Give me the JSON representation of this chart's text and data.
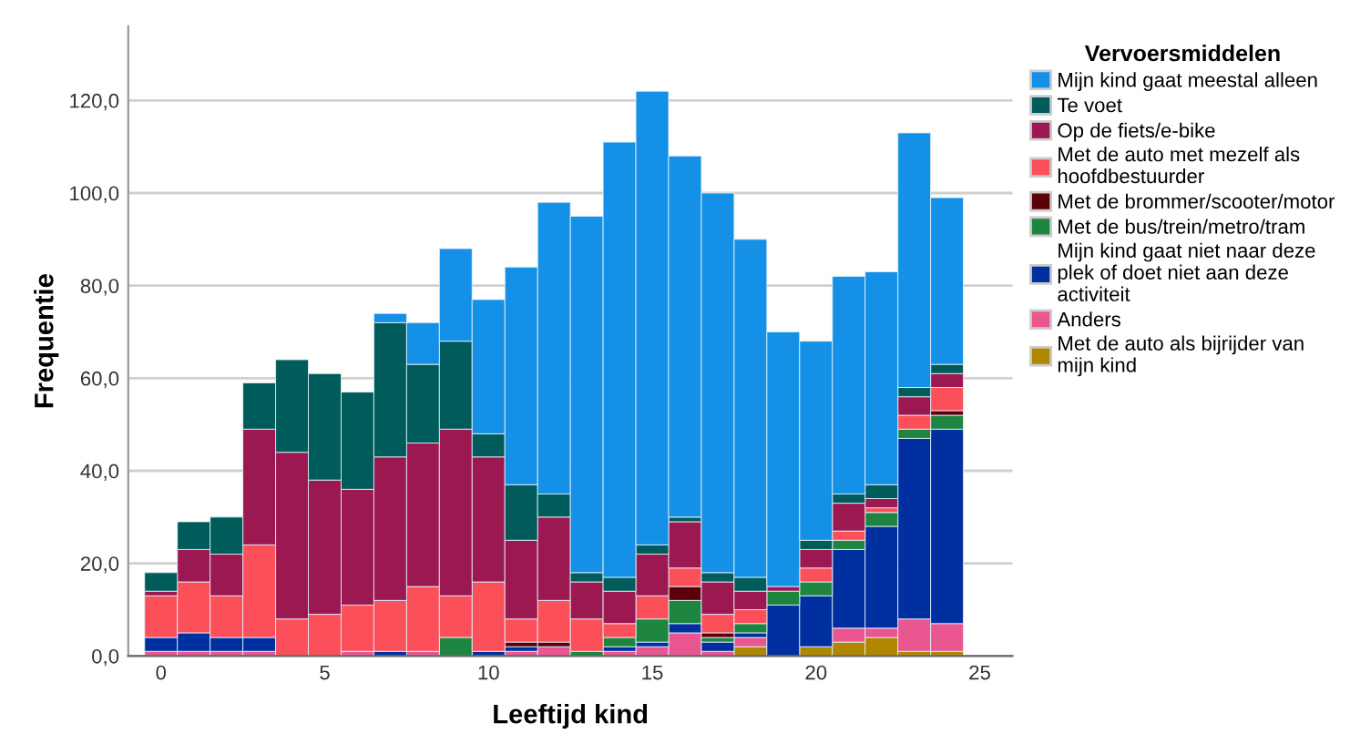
{
  "chart_data": {
    "type": "bar",
    "stacked": true,
    "xlabel": "Leeftijd kind",
    "ylabel": "Frequentie",
    "legend_title": "Vervoersmiddelen",
    "legend": "right",
    "grid": "y",
    "x": [
      0,
      1,
      2,
      3,
      4,
      5,
      6,
      7,
      8,
      9,
      10,
      11,
      12,
      13,
      14,
      15,
      16,
      17,
      18,
      19,
      20,
      21,
      22,
      23,
      24
    ],
    "xlim": [
      -1,
      26
    ],
    "xticks": [
      0,
      5,
      10,
      15,
      20,
      25
    ],
    "ylim": [
      0,
      136
    ],
    "yticks": [
      {
        "value": 0,
        "label": "0,0"
      },
      {
        "value": 20,
        "label": "20,0"
      },
      {
        "value": 40,
        "label": "40,0"
      },
      {
        "value": 60,
        "label": "60,0"
      },
      {
        "value": 80,
        "label": "80,0"
      },
      {
        "value": 100,
        "label": "100,0"
      },
      {
        "value": 120,
        "label": "120,0"
      }
    ],
    "series": [
      {
        "name": "Met de auto als bijrijder van mijn kind",
        "color": "#b08700",
        "values": [
          0,
          0,
          0,
          0,
          0,
          0,
          0,
          0,
          0,
          0,
          0,
          0,
          0,
          0,
          0,
          0,
          0,
          0,
          2,
          0,
          2,
          3,
          4,
          1,
          1
        ]
      },
      {
        "name": "Anders",
        "color": "#ea5690",
        "values": [
          1,
          1,
          1,
          1,
          0,
          0,
          1,
          0,
          1,
          0,
          0,
          1,
          2,
          0,
          1,
          2,
          5,
          1,
          2,
          0,
          0,
          3,
          2,
          7,
          6
        ]
      },
      {
        "name": "Mijn kind gaat niet naar deze plek of doet niet aan deze activiteit",
        "color": "#002fa0",
        "values": [
          3,
          4,
          3,
          3,
          0,
          0,
          0,
          1,
          0,
          0,
          1,
          1,
          0,
          0,
          1,
          1,
          2,
          2,
          1,
          11,
          11,
          17,
          22,
          39,
          42
        ]
      },
      {
        "name": "Met de bus/trein/metro/tram",
        "color": "#1e8540",
        "values": [
          0,
          0,
          0,
          0,
          0,
          0,
          0,
          0,
          0,
          4,
          0,
          0,
          0,
          1,
          2,
          5,
          5,
          1,
          2,
          3,
          3,
          2,
          3,
          2,
          3
        ]
      },
      {
        "name": "Met de brommer/scooter/motor",
        "color": "#5a0008",
        "values": [
          0,
          0,
          0,
          0,
          0,
          0,
          0,
          0,
          0,
          0,
          0,
          1,
          1,
          0,
          0,
          0,
          3,
          1,
          0,
          0,
          0,
          0,
          0,
          0,
          1
        ]
      },
      {
        "name": "Met de auto met mezelf als hoofdbestuurder",
        "color": "#fb4f5a",
        "values": [
          9,
          11,
          9,
          20,
          8,
          9,
          10,
          11,
          14,
          9,
          15,
          5,
          9,
          7,
          3,
          5,
          4,
          4,
          3,
          0,
          3,
          2,
          1,
          3,
          5
        ]
      },
      {
        "name": "Op de fiets/e-bike",
        "color": "#9b1851",
        "values": [
          1,
          7,
          9,
          25,
          36,
          29,
          25,
          31,
          31,
          36,
          27,
          17,
          18,
          8,
          7,
          9,
          10,
          7,
          4,
          1,
          4,
          6,
          2,
          4,
          3
        ]
      },
      {
        "name": "Te voet",
        "color": "#005c5a",
        "values": [
          4,
          6,
          8,
          10,
          20,
          23,
          21,
          29,
          17,
          19,
          5,
          12,
          5,
          2,
          3,
          2,
          1,
          2,
          3,
          0,
          2,
          2,
          3,
          2,
          2
        ]
      },
      {
        "name": "Mijn kind gaat meestal alleen",
        "color": "#1490e6",
        "values": [
          0,
          0,
          0,
          0,
          0,
          0,
          0,
          2,
          9,
          20,
          29,
          47,
          63,
          77,
          94,
          98,
          78,
          82,
          73,
          55,
          43,
          47,
          46,
          55,
          36
        ]
      }
    ]
  }
}
